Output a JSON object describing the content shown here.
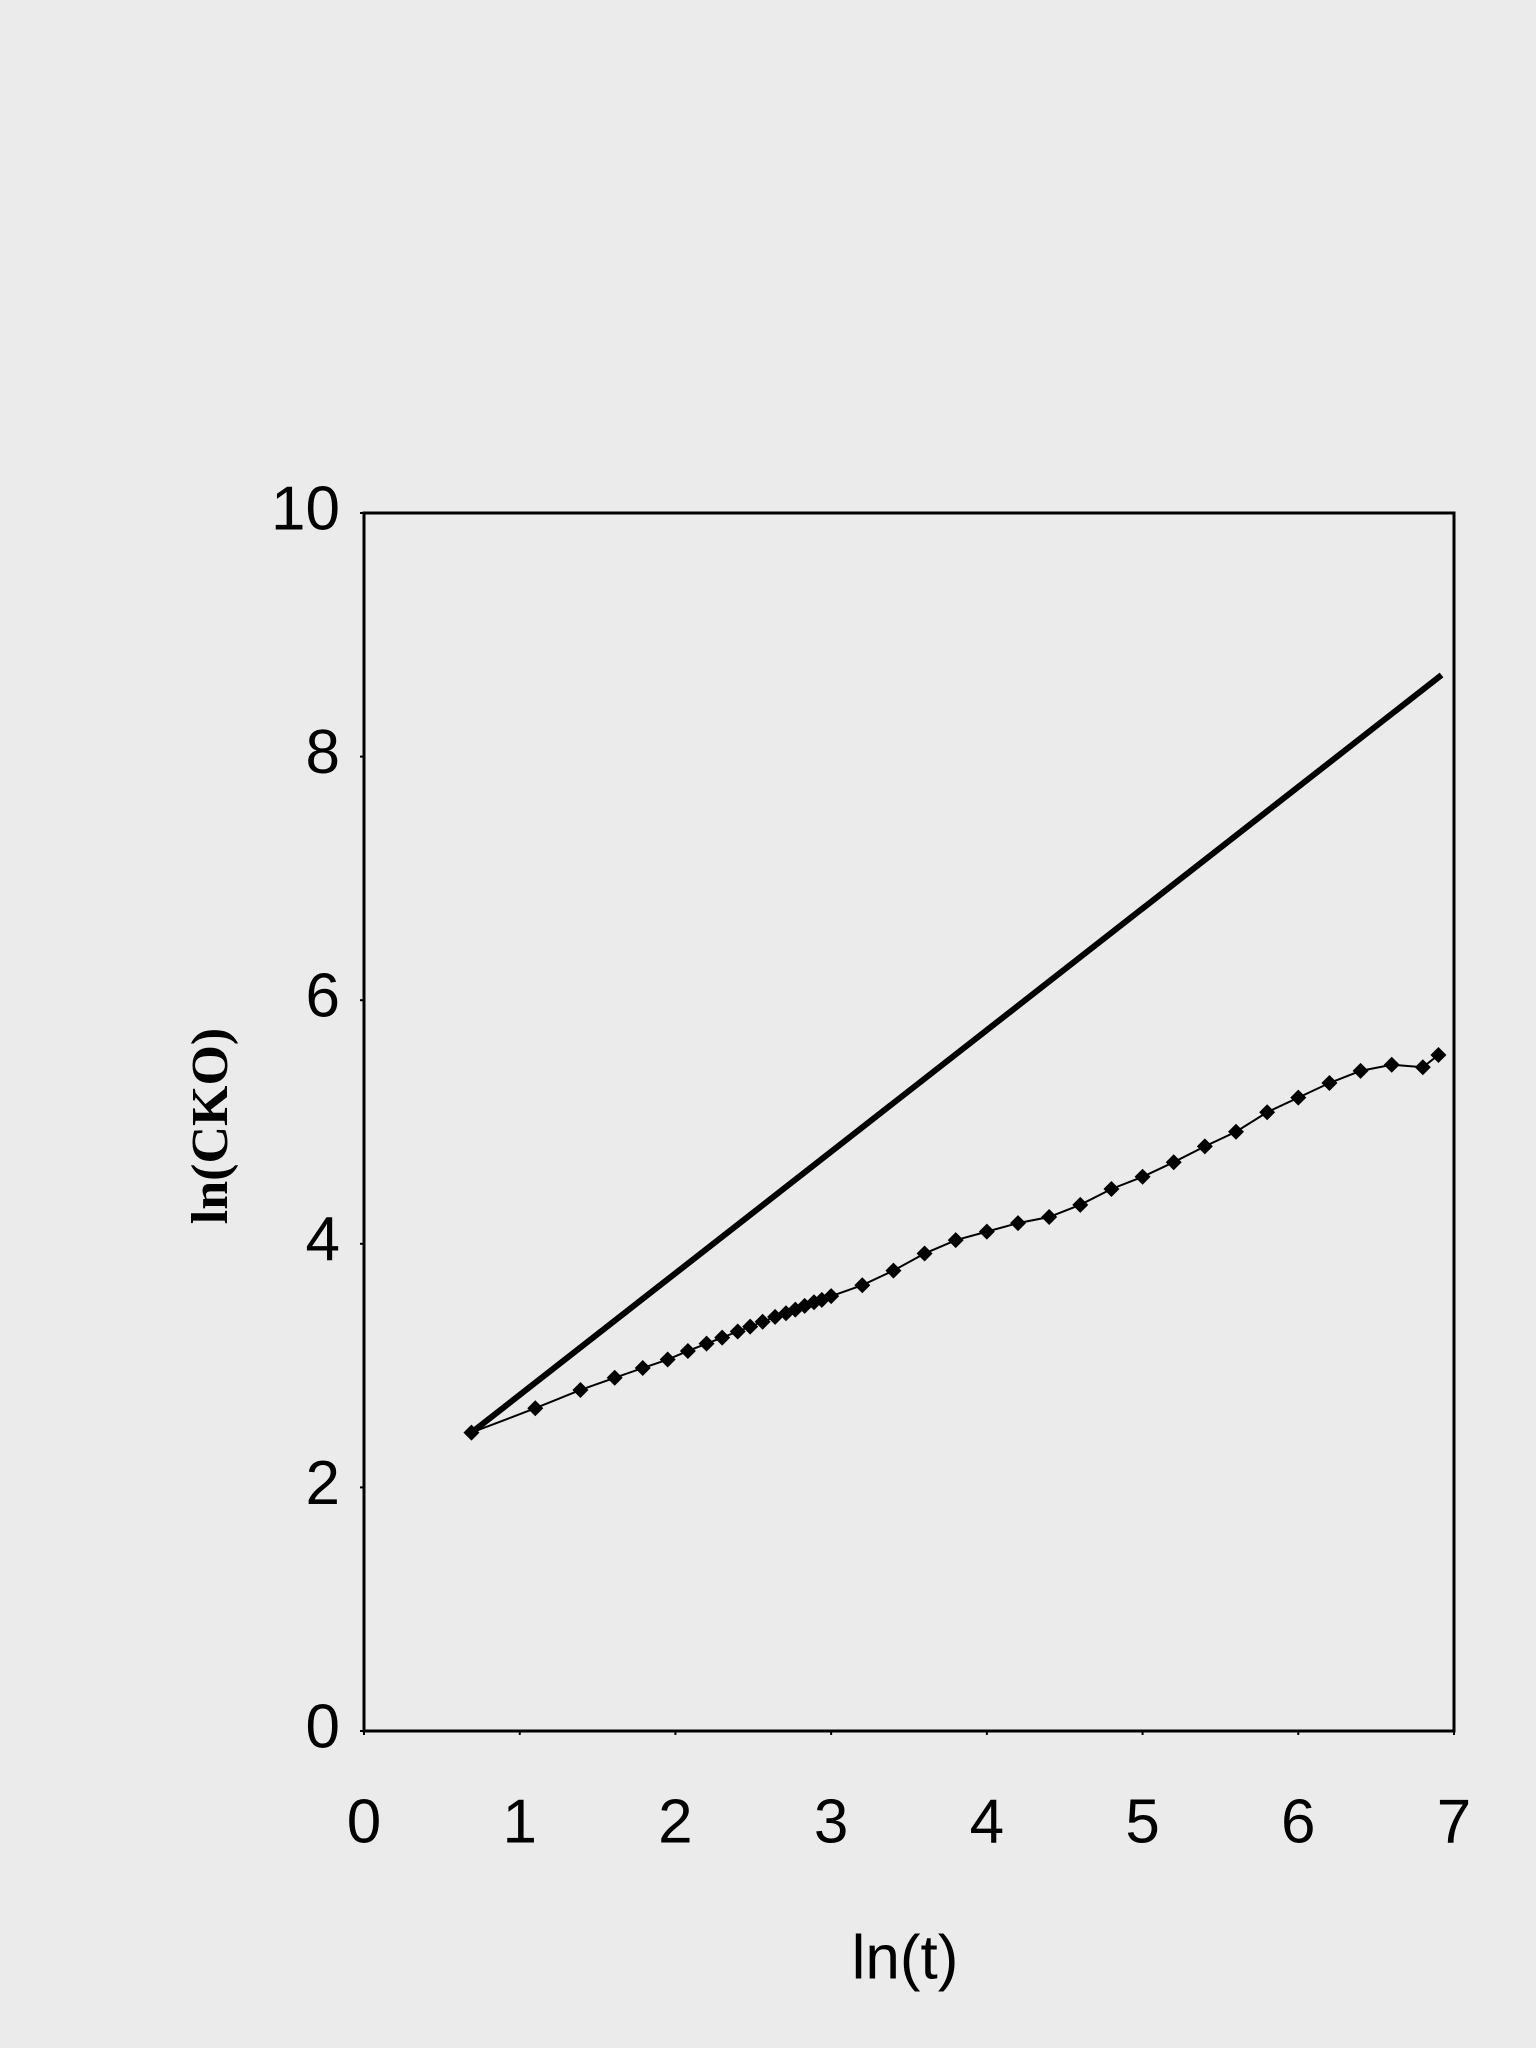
{
  "chart_data": {
    "type": "line",
    "x_label": "ln(t)",
    "y_label": "ln(CKO)",
    "xlim": [
      0,
      7
    ],
    "xticks": [
      0,
      1,
      2,
      3,
      4,
      5,
      6,
      7
    ],
    "ylim": [
      0,
      10
    ],
    "yticks": [
      0,
      2,
      4,
      6,
      8,
      10
    ],
    "series": [
      {
        "color": "#000000",
        "markers": false,
        "x": [
          0.69,
          6.92
        ],
        "values": [
          2.45,
          8.67
        ]
      },
      {
        "color": "#000000",
        "markers": true,
        "x": [
          0.69,
          1.1,
          1.39,
          1.61,
          1.79,
          1.95,
          2.08,
          2.2,
          2.3,
          2.4,
          2.48,
          2.56,
          2.64,
          2.71,
          2.77,
          2.83,
          2.89,
          2.94,
          3.0,
          3.2,
          3.4,
          3.6,
          3.8,
          4.0,
          4.2,
          4.4,
          4.6,
          4.8,
          5.0,
          5.2,
          5.4,
          5.6,
          5.8,
          6.0,
          6.2,
          6.4,
          6.6,
          6.8,
          6.9
        ],
        "values": [
          2.45,
          2.65,
          2.8,
          2.9,
          2.98,
          3.05,
          3.12,
          3.18,
          3.23,
          3.28,
          3.32,
          3.36,
          3.4,
          3.43,
          3.46,
          3.49,
          3.52,
          3.54,
          3.57,
          3.66,
          3.78,
          3.92,
          4.03,
          4.1,
          4.17,
          4.22,
          4.32,
          4.45,
          4.55,
          4.67,
          4.8,
          4.92,
          5.08,
          5.2,
          5.32,
          5.42,
          5.47,
          5.45,
          5.55
        ]
      }
    ]
  }
}
